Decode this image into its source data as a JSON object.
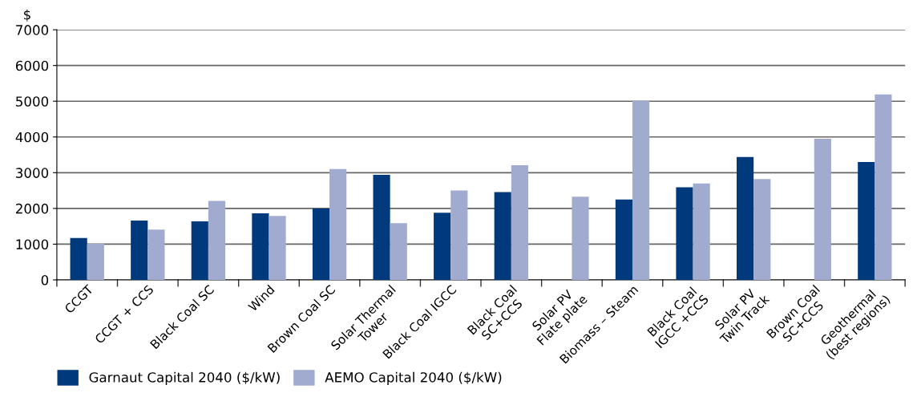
{
  "chart_data": {
    "type": "bar",
    "ylabel": "$",
    "categories": [
      "CCGT",
      "CCGT + CCS",
      "Black Coal SC",
      "Wind",
      "Brown Coal SC",
      "Solar Thermal\nTower",
      "Black Coal IGCC",
      "Black Coal\nSC+CCS",
      "Solar PV\nFlate plate",
      "Biomass – Steam",
      "Black Coal\nIGCC +CCS",
      "Solar PV\nTwin Track",
      "Brown Coal\nSC+CCS",
      "Geothermal\n(best regions)"
    ],
    "series": [
      {
        "name": "Garnaut Capital 2040 ($/kW)",
        "color": "#003a7d",
        "values": [
          1170,
          1660,
          1640,
          1860,
          2000,
          2940,
          1880,
          2460,
          null,
          2250,
          2590,
          3440,
          null,
          3300
        ]
      },
      {
        "name": "AEMO Capital 2040 ($/kW)",
        "color": "#a0abcf",
        "values": [
          1010,
          1410,
          2210,
          1790,
          3100,
          1590,
          2500,
          3210,
          2330,
          5010,
          2700,
          2820,
          3950,
          5190
        ]
      }
    ],
    "ylim": [
      0,
      7000
    ],
    "yticks": [
      0,
      1000,
      2000,
      3000,
      4000,
      5000,
      6000,
      7000
    ],
    "grid": "y",
    "legend": "bottom left"
  }
}
